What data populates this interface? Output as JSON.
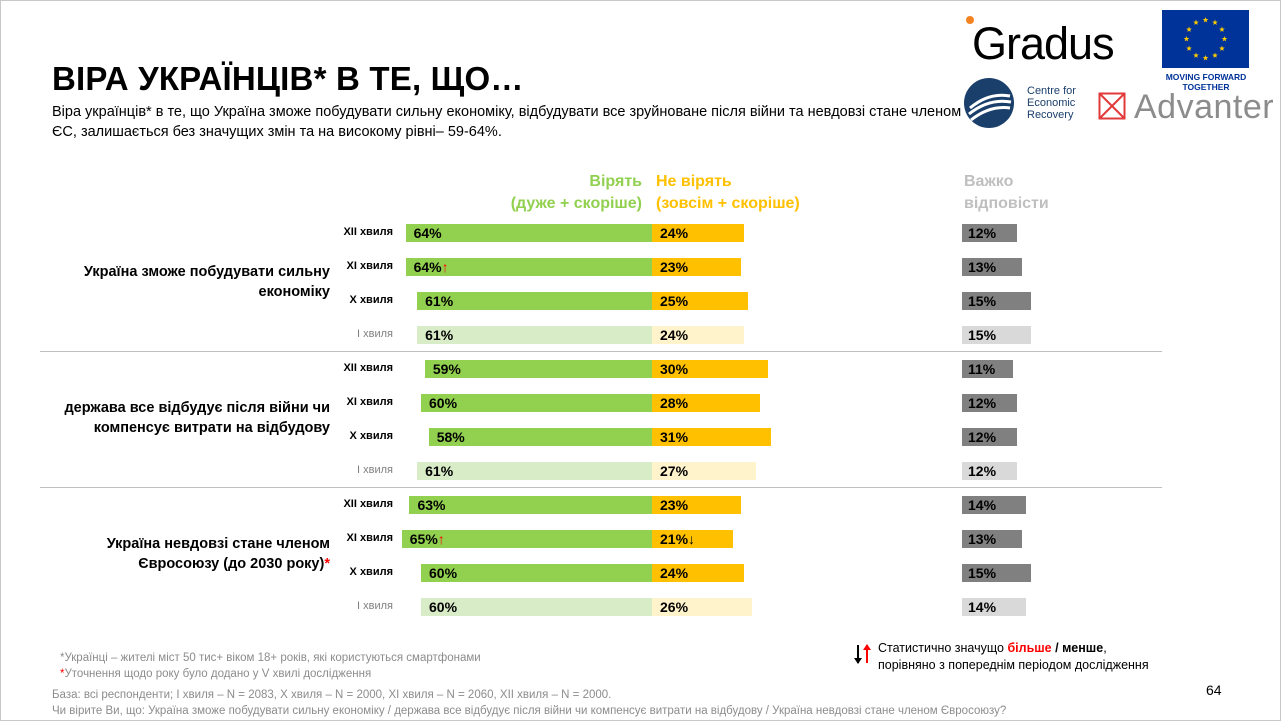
{
  "header": {
    "title": "ВІРА УКРАЇНЦІВ* В ТЕ, ЩО…",
    "subtitle": "Віра українців* в те, що Україна зможе побудувати сильну економіку, відбудувати все зруйноване після війни та невдовзі стане членом ЄС, залишається без значущих змін та на високому рівні– 59-64%."
  },
  "logos": {
    "gradus": "Gradus",
    "eu_caption": "MOVING FORWARD TOGETHER",
    "cer_lines": [
      "Centre for",
      "Economic",
      "Recovery"
    ],
    "advanter": "Advanter"
  },
  "colors": {
    "believe": "#92d050",
    "believe_light": "#d9ecc8",
    "not_believe": "#ffc000",
    "not_believe_light": "#fff3cc",
    "hard": "#808080",
    "hard_light": "#d9d9d9",
    "up_arrow": "#ff0000",
    "down_arrow": "#000000"
  },
  "chart_data": {
    "type": "bar",
    "orientation": "horizontal",
    "stacked_diverging": true,
    "series_headers": {
      "believe": [
        "Вірять",
        "(дуже + скоріше)"
      ],
      "not_believe": [
        "Не вірять",
        "(зовсім + скоріше)"
      ],
      "hard": [
        "Важко",
        "відповісти"
      ]
    },
    "unit": "%",
    "groups": [
      {
        "label": "Україна зможе побудувати сильну економіку",
        "asterisk": false,
        "rows": [
          {
            "wave": "XII хвиля",
            "believe": 64,
            "not_believe": 24,
            "hard": 12,
            "believe_change": "",
            "not_believe_change": "",
            "faded": false
          },
          {
            "wave": "XI хвиля",
            "believe": 64,
            "not_believe": 23,
            "hard": 13,
            "believe_change": "up",
            "not_believe_change": "",
            "faded": false
          },
          {
            "wave": "X хвиля",
            "believe": 61,
            "not_believe": 25,
            "hard": 15,
            "believe_change": "",
            "not_believe_change": "",
            "faded": false
          },
          {
            "wave": "I хвиля",
            "believe": 61,
            "not_believe": 24,
            "hard": 15,
            "believe_change": "",
            "not_believe_change": "",
            "faded": true
          }
        ]
      },
      {
        "label": "держава все відбудує після війни чи компенсує витрати на відбудову",
        "asterisk": false,
        "rows": [
          {
            "wave": "XII хвиля",
            "believe": 59,
            "not_believe": 30,
            "hard": 11,
            "believe_change": "",
            "not_believe_change": "",
            "faded": false
          },
          {
            "wave": "XI хвиля",
            "believe": 60,
            "not_believe": 28,
            "hard": 12,
            "believe_change": "",
            "not_believe_change": "",
            "faded": false
          },
          {
            "wave": "X хвиля",
            "believe": 58,
            "not_believe": 31,
            "hard": 12,
            "believe_change": "",
            "not_believe_change": "",
            "faded": false
          },
          {
            "wave": "I хвиля",
            "believe": 61,
            "not_believe": 27,
            "hard": 12,
            "believe_change": "",
            "not_believe_change": "",
            "faded": true
          }
        ]
      },
      {
        "label": "Україна невдовзі стане членом Євросоюзу (до 2030 року)",
        "asterisk": true,
        "rows": [
          {
            "wave": "XII хвиля",
            "believe": 63,
            "not_believe": 23,
            "hard": 14,
            "believe_change": "",
            "not_believe_change": "",
            "faded": false
          },
          {
            "wave": "XI хвиля",
            "believe": 65,
            "not_believe": 21,
            "hard": 13,
            "believe_change": "up",
            "not_believe_change": "down",
            "faded": false
          },
          {
            "wave": "X хвиля",
            "believe": 60,
            "not_believe": 24,
            "hard": 15,
            "believe_change": "",
            "not_believe_change": "",
            "faded": false
          },
          {
            "wave": "I хвиля",
            "believe": 60,
            "not_believe": 26,
            "hard": 14,
            "believe_change": "",
            "not_believe_change": "",
            "faded": true
          }
        ]
      }
    ]
  },
  "legend": {
    "line1_prefix": "Статистично значущо ",
    "more": "більше",
    "sep": " / ",
    "less": "менше",
    "line1_suffix": ",",
    "line2": "порівняно з попереднім періодом дослідження"
  },
  "footnotes": {
    "note1": "*Українці – жителі міст 50 тис+ віком 18+ років, які користуються смартфонами",
    "note2_star": "*",
    "note2": "Уточнення щодо року було додано у V хвилі дослідження",
    "base": "База: всі респонденти; I хвиля – N = 2083, X хвиля – N = 2000, XI хвиля – N = 2060, XII хвиля – N = 2000.",
    "question": "Чи вірите Ви, що: Україна зможе побудувати сильну економіку / держава все відбудує після війни чи компенсує витрати на відбудову / Україна невдовзі стане членом Євросоюзу?"
  },
  "page_number": "64"
}
